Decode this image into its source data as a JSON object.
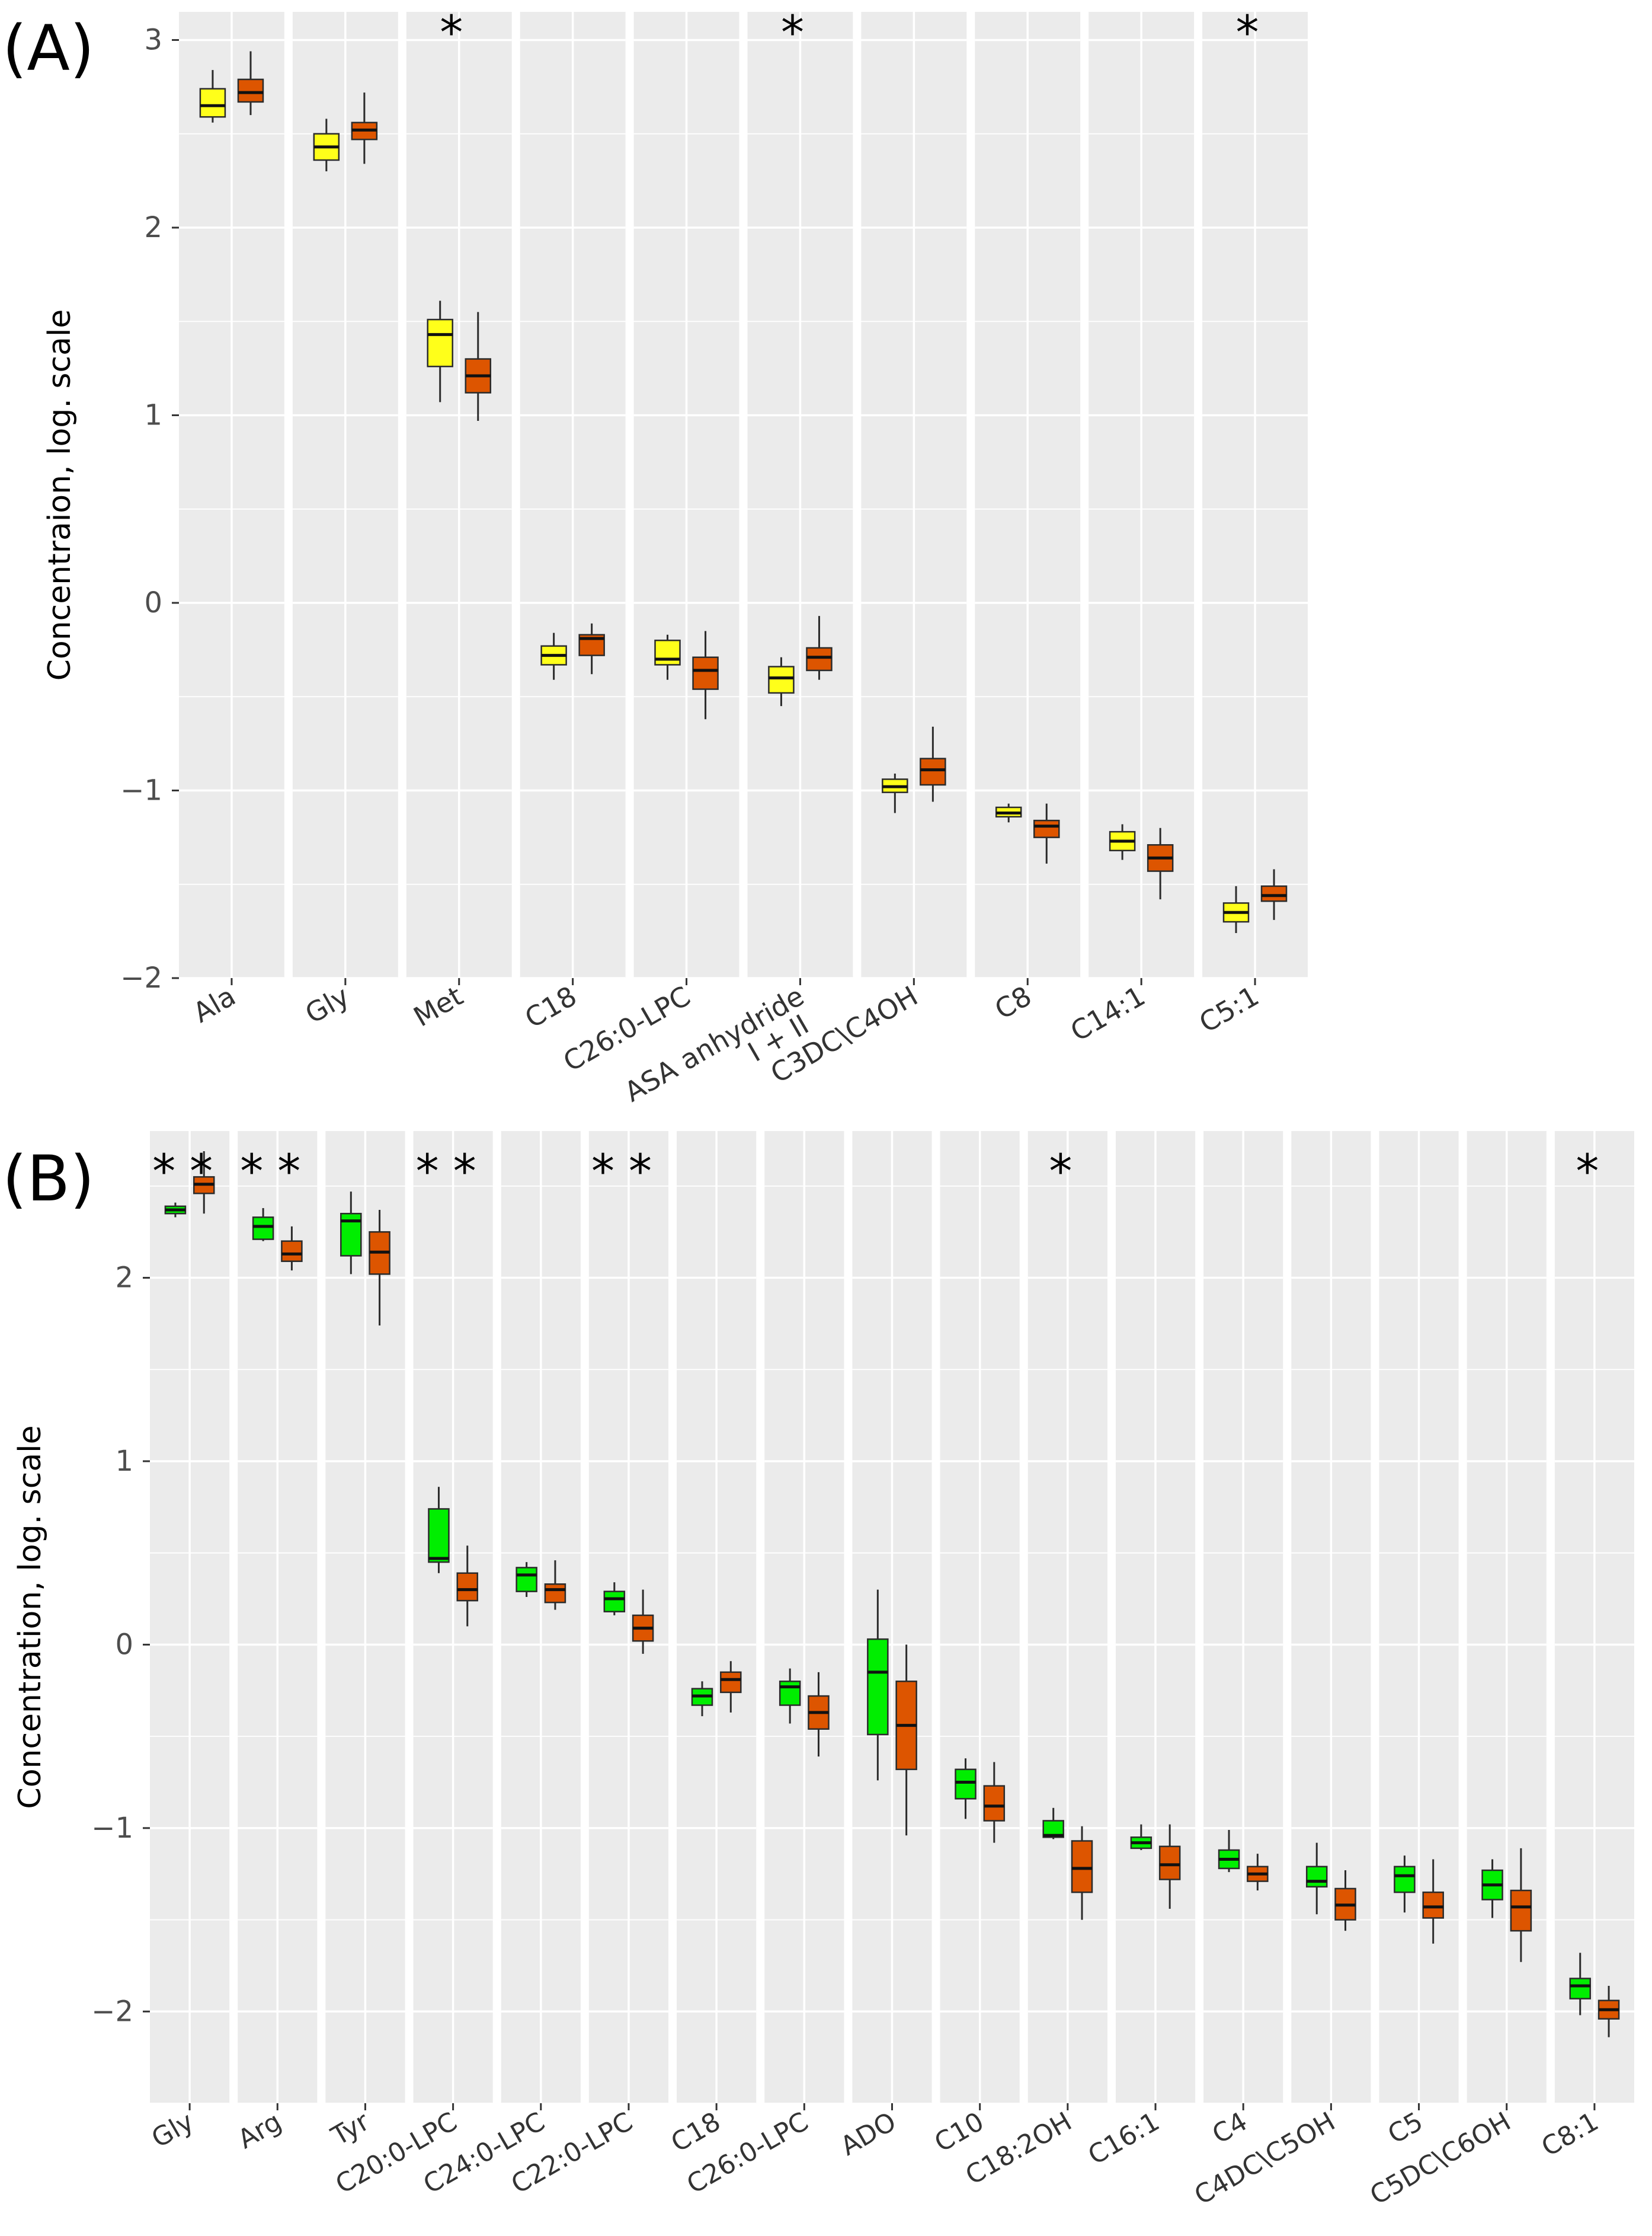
{
  "colors": {
    "panel_bg": "#EBEBEB",
    "grid": "#FFFFFF",
    "control_A": "#FFFF1A",
    "control_B": "#00EE00",
    "case": "#DD5500",
    "stroke": "#2B2B2B"
  },
  "chart_data": [
    {
      "panel_label": "(A)",
      "type": "boxplot",
      "ylabel": "Concentraion, log. scale",
      "ylim": [
        -2,
        3.15
      ],
      "yticks": [
        3,
        2,
        1,
        0,
        -1,
        -2
      ],
      "ytick_labels": [
        "3",
        "2",
        "1",
        "0",
        "−1",
        "−2"
      ],
      "facets": [
        {
          "label": "Ala",
          "sig": "",
          "boxes": [
            {
              "group": "control",
              "min": 2.56,
              "q1": 2.59,
              "med": 2.65,
              "q3": 2.74,
              "max": 2.84
            },
            {
              "group": "case",
              "min": 2.6,
              "q1": 2.67,
              "med": 2.72,
              "q3": 2.79,
              "max": 2.94
            }
          ]
        },
        {
          "label": "Gly",
          "sig": "",
          "boxes": [
            {
              "group": "control",
              "min": 2.3,
              "q1": 2.36,
              "med": 2.43,
              "q3": 2.5,
              "max": 2.58
            },
            {
              "group": "case",
              "min": 2.34,
              "q1": 2.47,
              "med": 2.52,
              "q3": 2.56,
              "max": 2.72
            }
          ]
        },
        {
          "label": "Met",
          "sig": "*",
          "boxes": [
            {
              "group": "control",
              "min": 1.07,
              "q1": 1.26,
              "med": 1.43,
              "q3": 1.51,
              "max": 1.61
            },
            {
              "group": "case",
              "min": 0.97,
              "q1": 1.12,
              "med": 1.21,
              "q3": 1.3,
              "max": 1.55
            }
          ]
        },
        {
          "label": "C18",
          "sig": "",
          "boxes": [
            {
              "group": "control",
              "min": -0.41,
              "q1": -0.33,
              "med": -0.28,
              "q3": -0.23,
              "max": -0.16
            },
            {
              "group": "case",
              "min": -0.38,
              "q1": -0.28,
              "med": -0.19,
              "q3": -0.17,
              "max": -0.11
            }
          ]
        },
        {
          "label": "C26:0-LPC",
          "sig": "",
          "boxes": [
            {
              "group": "control",
              "min": -0.41,
              "q1": -0.33,
              "med": -0.3,
              "q3": -0.2,
              "max": -0.17
            },
            {
              "group": "case",
              "min": -0.62,
              "q1": -0.46,
              "med": -0.36,
              "q3": -0.29,
              "max": -0.15
            }
          ]
        },
        {
          "label": "ASA anhydride",
          "label2": "I + II",
          "sig": "*",
          "boxes": [
            {
              "group": "control",
              "min": -0.55,
              "q1": -0.48,
              "med": -0.4,
              "q3": -0.34,
              "max": -0.29
            },
            {
              "group": "case",
              "min": -0.41,
              "q1": -0.36,
              "med": -0.29,
              "q3": -0.24,
              "max": -0.07
            }
          ]
        },
        {
          "label": "C3DC\\C4OH",
          "sig": "",
          "boxes": [
            {
              "group": "control",
              "min": -1.12,
              "q1": -1.01,
              "med": -0.98,
              "q3": -0.94,
              "max": -0.91
            },
            {
              "group": "case",
              "min": -1.06,
              "q1": -0.97,
              "med": -0.89,
              "q3": -0.83,
              "max": -0.66
            }
          ]
        },
        {
          "label": "C8",
          "sig": "",
          "boxes": [
            {
              "group": "control",
              "min": -1.17,
              "q1": -1.14,
              "med": -1.12,
              "q3": -1.09,
              "max": -1.07
            },
            {
              "group": "case",
              "min": -1.39,
              "q1": -1.25,
              "med": -1.19,
              "q3": -1.16,
              "max": -1.07
            }
          ]
        },
        {
          "label": "C14:1",
          "sig": "",
          "boxes": [
            {
              "group": "control",
              "min": -1.37,
              "q1": -1.32,
              "med": -1.27,
              "q3": -1.22,
              "max": -1.18
            },
            {
              "group": "case",
              "min": -1.58,
              "q1": -1.43,
              "med": -1.36,
              "q3": -1.29,
              "max": -1.2
            }
          ]
        },
        {
          "label": "C5:1",
          "sig": "*",
          "boxes": [
            {
              "group": "control",
              "min": -1.76,
              "q1": -1.7,
              "med": -1.65,
              "q3": -1.6,
              "max": -1.51
            },
            {
              "group": "case",
              "min": -1.69,
              "q1": -1.59,
              "med": -1.56,
              "q3": -1.51,
              "max": -1.42
            }
          ]
        }
      ]
    },
    {
      "panel_label": "(B)",
      "type": "boxplot",
      "ylabel": "Concentration, log. scale",
      "ylim": [
        -2.5,
        2.8
      ],
      "yticks": [
        2,
        1,
        0,
        -1,
        -2
      ],
      "ytick_labels": [
        "2",
        "1",
        "0",
        "−1",
        "−2"
      ],
      "facets": [
        {
          "label": "Gly",
          "sig": "**",
          "boxes": [
            {
              "group": "control",
              "min": 2.33,
              "q1": 2.35,
              "med": 2.37,
              "q3": 2.39,
              "max": 2.41
            },
            {
              "group": "case",
              "min": 2.35,
              "q1": 2.46,
              "med": 2.51,
              "q3": 2.55,
              "max": 2.69
            }
          ]
        },
        {
          "label": "Arg",
          "sig": "**",
          "boxes": [
            {
              "group": "control",
              "min": 2.2,
              "q1": 2.21,
              "med": 2.28,
              "q3": 2.33,
              "max": 2.38
            },
            {
              "group": "case",
              "min": 2.04,
              "q1": 2.09,
              "med": 2.13,
              "q3": 2.2,
              "max": 2.28
            }
          ]
        },
        {
          "label": "Tyr",
          "sig": "",
          "boxes": [
            {
              "group": "control",
              "min": 2.02,
              "q1": 2.12,
              "med": 2.31,
              "q3": 2.35,
              "max": 2.47
            },
            {
              "group": "case",
              "min": 1.74,
              "q1": 2.02,
              "med": 2.14,
              "q3": 2.25,
              "max": 2.37
            }
          ]
        },
        {
          "label": "C20:0-LPC",
          "sig": "**",
          "boxes": [
            {
              "group": "control",
              "min": 0.39,
              "q1": 0.45,
              "med": 0.47,
              "q3": 0.74,
              "max": 0.86
            },
            {
              "group": "case",
              "min": 0.1,
              "q1": 0.24,
              "med": 0.3,
              "q3": 0.39,
              "max": 0.54
            }
          ]
        },
        {
          "label": "C24:0-LPC",
          "sig": "",
          "boxes": [
            {
              "group": "control",
              "min": 0.26,
              "q1": 0.29,
              "med": 0.38,
              "q3": 0.42,
              "max": 0.45
            },
            {
              "group": "case",
              "min": 0.19,
              "q1": 0.23,
              "med": 0.3,
              "q3": 0.33,
              "max": 0.46
            }
          ]
        },
        {
          "label": "C22:0-LPC",
          "sig": "**",
          "boxes": [
            {
              "group": "control",
              "min": 0.16,
              "q1": 0.18,
              "med": 0.25,
              "q3": 0.29,
              "max": 0.34
            },
            {
              "group": "case",
              "min": -0.05,
              "q1": 0.02,
              "med": 0.09,
              "q3": 0.16,
              "max": 0.3
            }
          ]
        },
        {
          "label": "C18",
          "sig": "",
          "boxes": [
            {
              "group": "control",
              "min": -0.39,
              "q1": -0.33,
              "med": -0.28,
              "q3": -0.24,
              "max": -0.2
            },
            {
              "group": "case",
              "min": -0.37,
              "q1": -0.26,
              "med": -0.19,
              "q3": -0.15,
              "max": -0.09
            }
          ]
        },
        {
          "label": "C26:0-LPC",
          "sig": "",
          "boxes": [
            {
              "group": "control",
              "min": -0.43,
              "q1": -0.33,
              "med": -0.23,
              "q3": -0.2,
              "max": -0.13
            },
            {
              "group": "case",
              "min": -0.61,
              "q1": -0.46,
              "med": -0.37,
              "q3": -0.28,
              "max": -0.15
            }
          ]
        },
        {
          "label": "ADO",
          "sig": "",
          "boxes": [
            {
              "group": "control",
              "min": -0.74,
              "q1": -0.49,
              "med": -0.15,
              "q3": 0.03,
              "max": 0.3
            },
            {
              "group": "case",
              "min": -1.04,
              "q1": -0.68,
              "med": -0.44,
              "q3": -0.2,
              "max": 0.0
            }
          ]
        },
        {
          "label": "C10",
          "sig": "",
          "boxes": [
            {
              "group": "control",
              "min": -0.95,
              "q1": -0.84,
              "med": -0.75,
              "q3": -0.68,
              "max": -0.62
            },
            {
              "group": "case",
              "min": -1.08,
              "q1": -0.96,
              "med": -0.88,
              "q3": -0.77,
              "max": -0.64
            }
          ]
        },
        {
          "label": "C18:2OH",
          "sig": "*",
          "boxes": [
            {
              "group": "control",
              "min": -1.06,
              "q1": -1.05,
              "med": -1.04,
              "q3": -0.96,
              "max": -0.89
            },
            {
              "group": "case",
              "min": -1.5,
              "q1": -1.35,
              "med": -1.22,
              "q3": -1.07,
              "max": -0.99
            }
          ]
        },
        {
          "label": "C16:1",
          "sig": "",
          "boxes": [
            {
              "group": "control",
              "min": -1.12,
              "q1": -1.11,
              "med": -1.08,
              "q3": -1.05,
              "max": -0.98
            },
            {
              "group": "case",
              "min": -1.44,
              "q1": -1.28,
              "med": -1.2,
              "q3": -1.1,
              "max": -0.98
            }
          ]
        },
        {
          "label": "C4",
          "sig": "",
          "boxes": [
            {
              "group": "control",
              "min": -1.24,
              "q1": -1.22,
              "med": -1.17,
              "q3": -1.12,
              "max": -1.01
            },
            {
              "group": "case",
              "min": -1.34,
              "q1": -1.29,
              "med": -1.25,
              "q3": -1.21,
              "max": -1.14
            }
          ]
        },
        {
          "label": "C4DC\\C5OH",
          "sig": "",
          "boxes": [
            {
              "group": "control",
              "min": -1.47,
              "q1": -1.32,
              "med": -1.29,
              "q3": -1.21,
              "max": -1.08
            },
            {
              "group": "case",
              "min": -1.56,
              "q1": -1.5,
              "med": -1.42,
              "q3": -1.33,
              "max": -1.23
            }
          ]
        },
        {
          "label": "C5",
          "sig": "",
          "boxes": [
            {
              "group": "control",
              "min": -1.46,
              "q1": -1.35,
              "med": -1.26,
              "q3": -1.21,
              "max": -1.15
            },
            {
              "group": "case",
              "min": -1.63,
              "q1": -1.49,
              "med": -1.43,
              "q3": -1.35,
              "max": -1.17
            }
          ]
        },
        {
          "label": "C5DC\\C6OH",
          "sig": "",
          "boxes": [
            {
              "group": "control",
              "min": -1.49,
              "q1": -1.39,
              "med": -1.31,
              "q3": -1.23,
              "max": -1.17
            },
            {
              "group": "case",
              "min": -1.73,
              "q1": -1.56,
              "med": -1.43,
              "q3": -1.34,
              "max": -1.11
            }
          ]
        },
        {
          "label": "C8:1",
          "sig": "*",
          "boxes": [
            {
              "group": "control",
              "min": -2.02,
              "q1": -1.93,
              "med": -1.86,
              "q3": -1.82,
              "max": -1.68
            },
            {
              "group": "case",
              "min": -2.14,
              "q1": -2.04,
              "med": -1.99,
              "q3": -1.94,
              "max": -1.86
            }
          ]
        }
      ]
    }
  ]
}
